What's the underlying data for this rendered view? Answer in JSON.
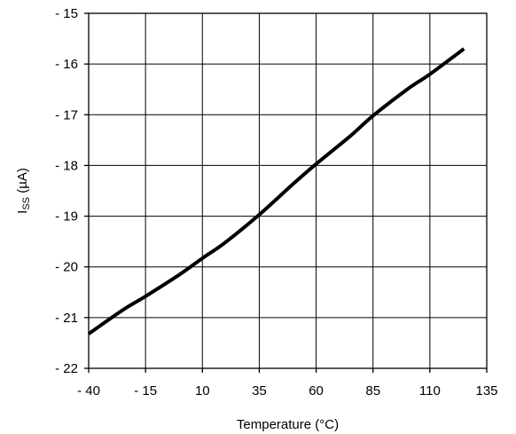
{
  "chart_data": {
    "type": "line",
    "title": "",
    "xlabel": "Temperature (°C)",
    "ylabel_main": "I",
    "ylabel_sub": "SS",
    "ylabel_unit": " (µA)",
    "x_ticks": [
      "- 40",
      "- 15",
      "10",
      "35",
      "60",
      "85",
      "110",
      "135"
    ],
    "x_tick_values": [
      -40,
      -15,
      10,
      35,
      60,
      85,
      110,
      135
    ],
    "y_ticks": [
      "- 15",
      "- 16",
      "- 17",
      "- 18",
      "- 19",
      "- 20",
      "- 21",
      "- 22"
    ],
    "y_tick_values": [
      -15,
      -16,
      -17,
      -18,
      -19,
      -20,
      -21,
      -22
    ],
    "xlim": [
      -40,
      135
    ],
    "ylim": [
      -22,
      -15
    ],
    "grid": true,
    "series": [
      {
        "x": [
          -40,
          -25,
          -15,
          0,
          10,
          20,
          35,
          50,
          60,
          75,
          85,
          100,
          110,
          125
        ],
        "y": [
          -21.32,
          -20.85,
          -20.58,
          -20.15,
          -19.83,
          -19.52,
          -18.97,
          -18.36,
          -17.97,
          -17.42,
          -17.02,
          -16.5,
          -16.2,
          -15.7
        ]
      }
    ]
  }
}
